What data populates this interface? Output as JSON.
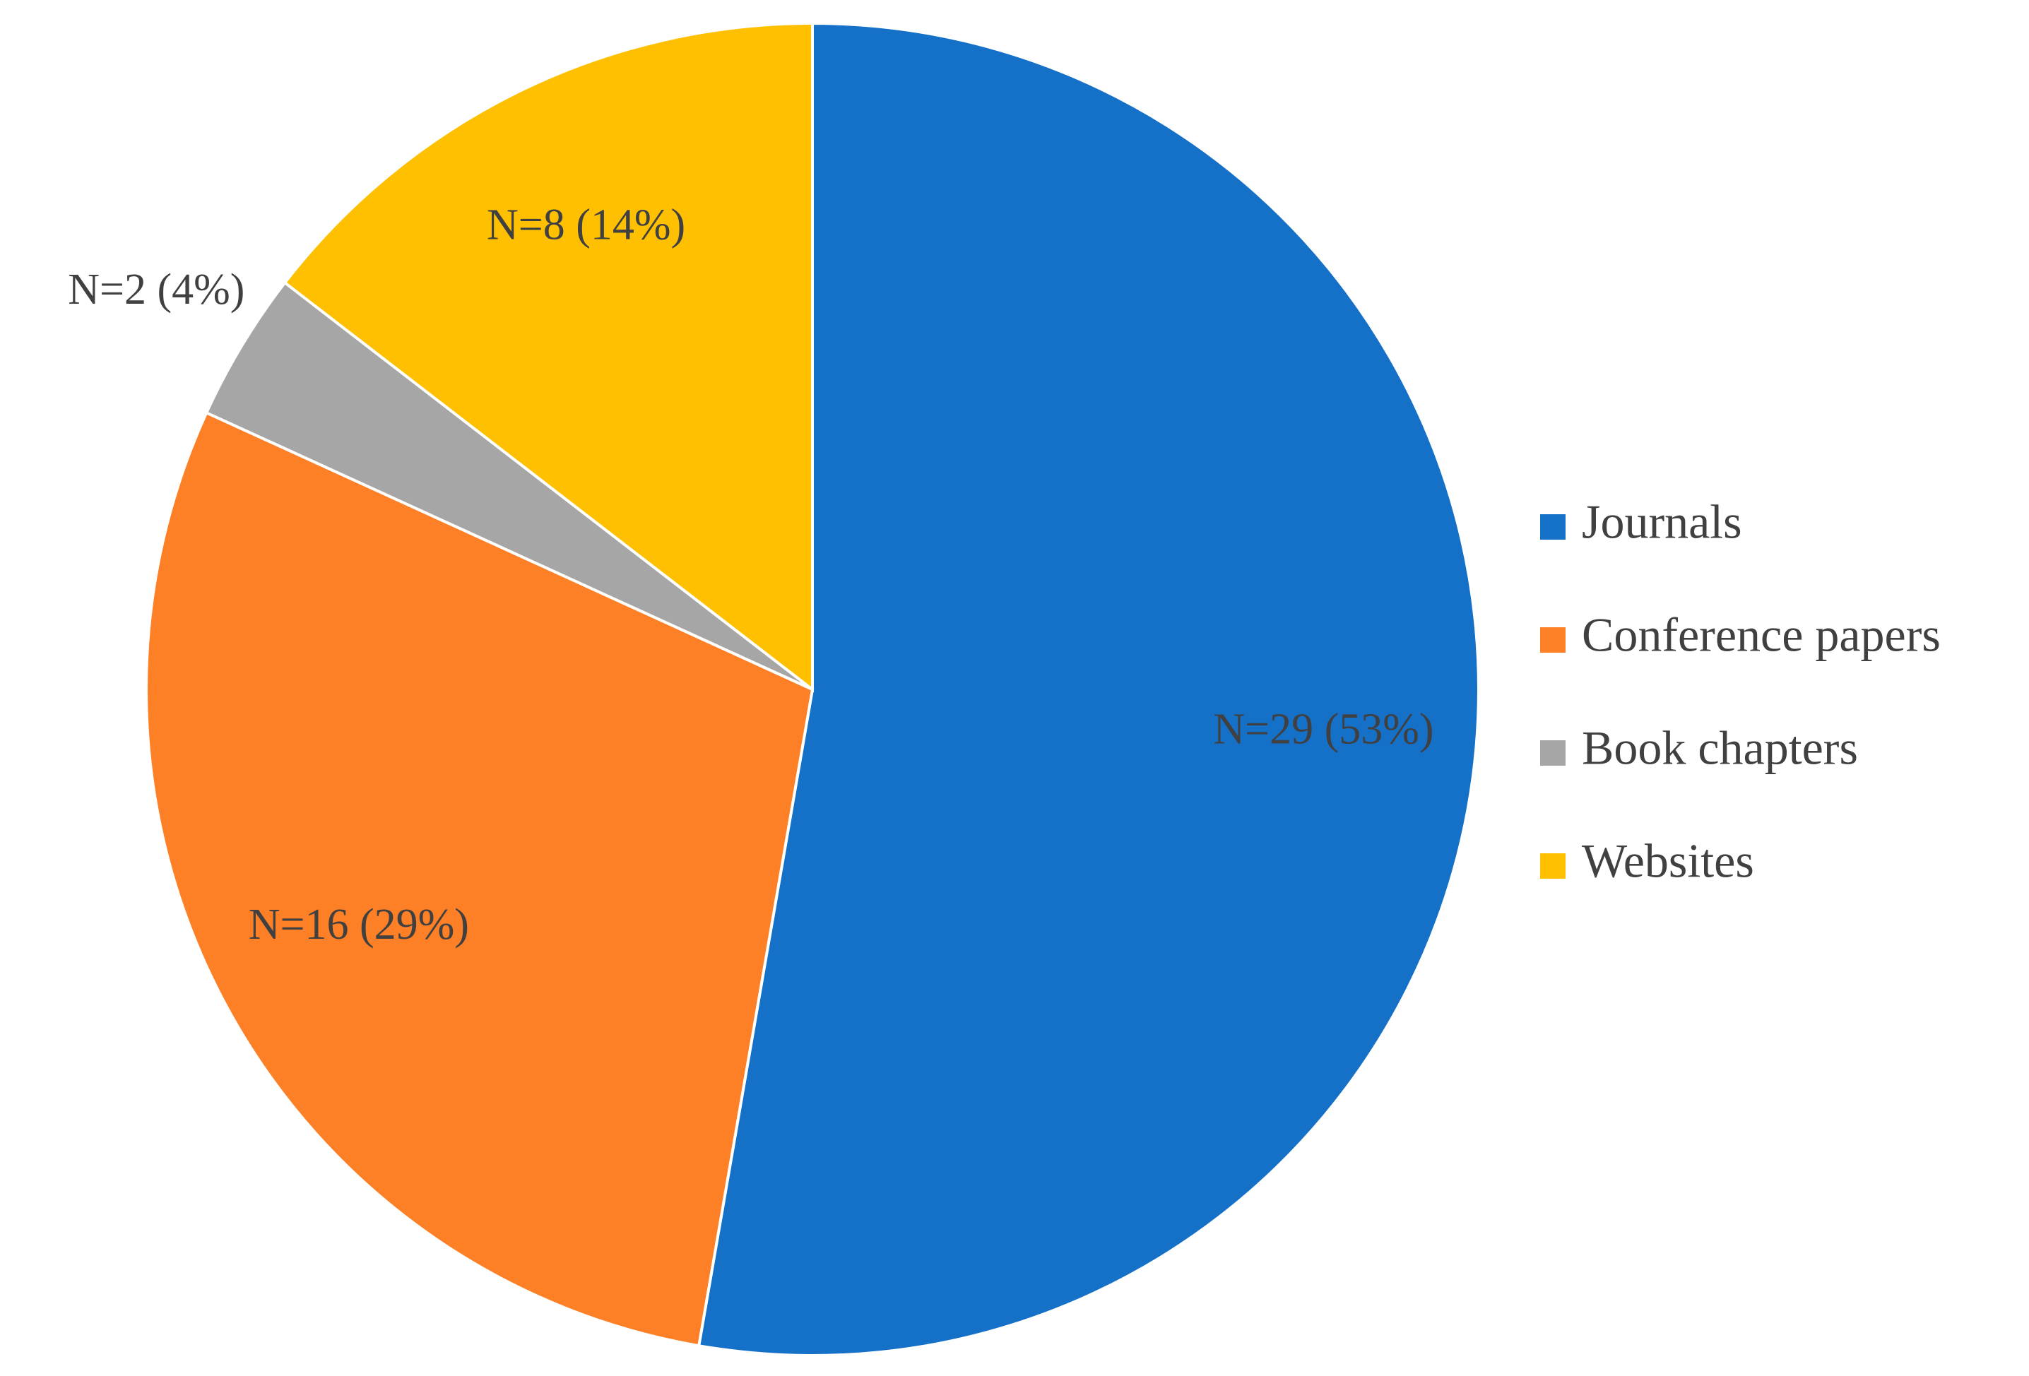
{
  "chart_data": {
    "type": "pie",
    "categories": [
      "Journals",
      "Conference papers",
      "Book chapters",
      "Websites"
    ],
    "values": [
      29,
      16,
      2,
      8
    ],
    "value_labels": [
      "N=29 (53%)",
      "N=16 (29%)",
      "N=2 (4%)",
      "N=8 (14%)"
    ],
    "colors": [
      "#1570c8",
      "#fd7f26",
      "#a6a6a6",
      "#fec000"
    ],
    "legend": "right"
  }
}
